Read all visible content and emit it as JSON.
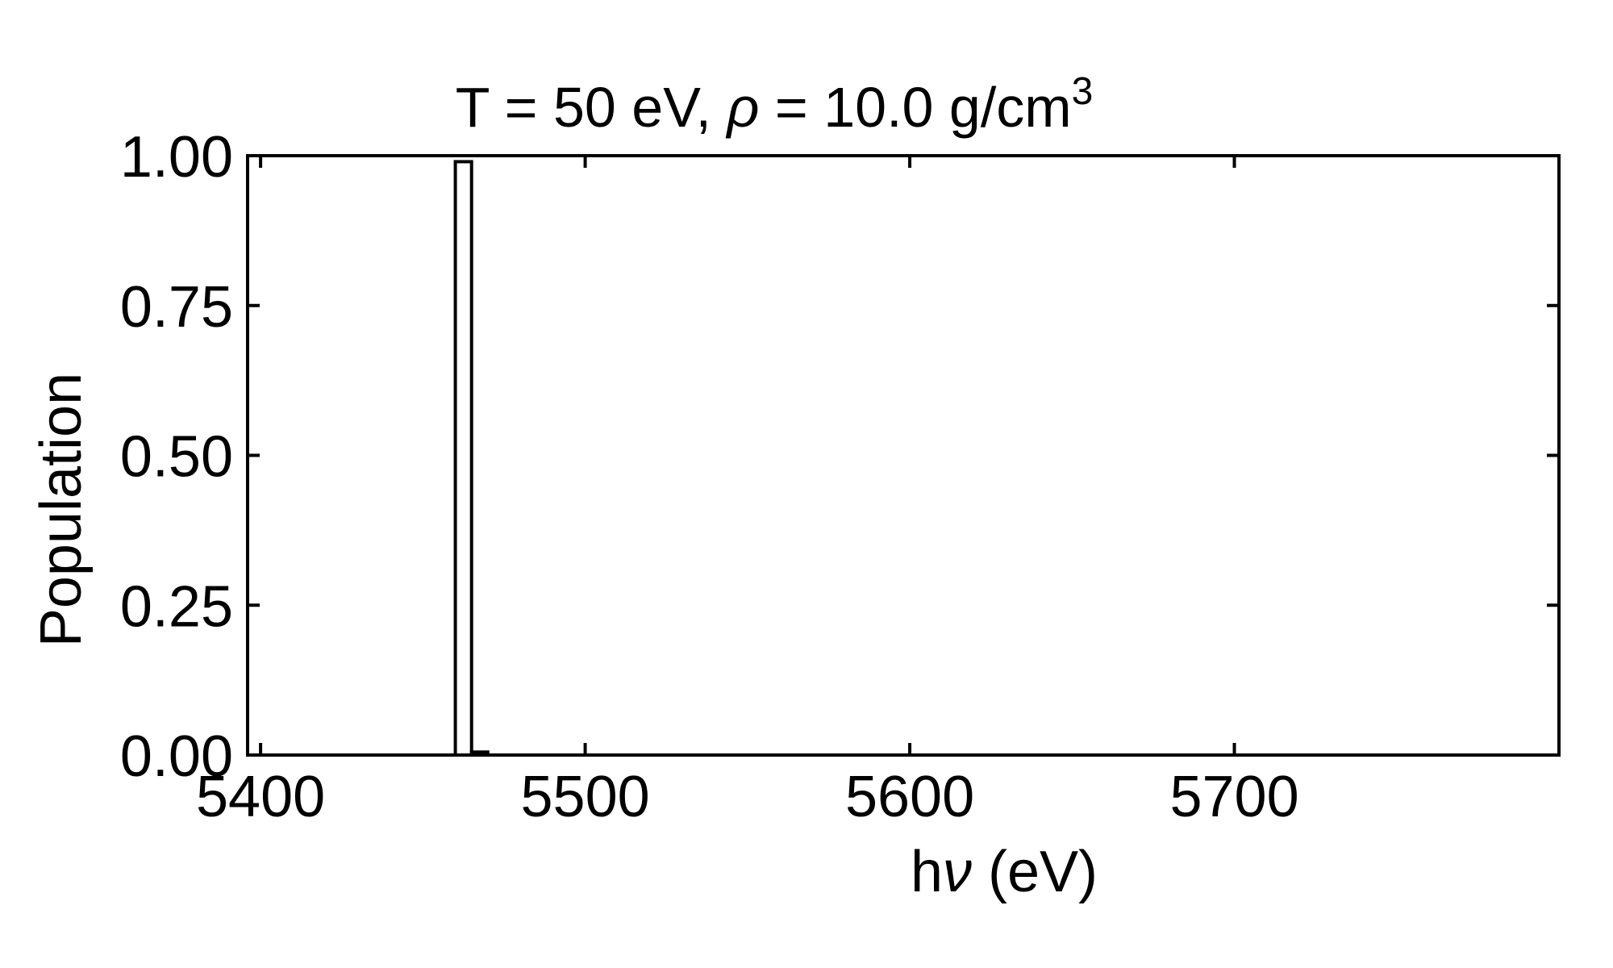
{
  "chart_data": {
    "type": "bar",
    "title": {
      "prefix": "T = 50 eV, ",
      "rho_symbol": "ρ",
      "suffix": " = 10.0 g/cm",
      "superscript": "3"
    },
    "xlabel": {
      "h": "h",
      "nu_symbol": "ν",
      "unit": " (eV)"
    },
    "ylabel": "Population",
    "xlim": [
      5396,
      5800
    ],
    "ylim": [
      0,
      1.0
    ],
    "xticks": [
      5400,
      5500,
      5600,
      5700
    ],
    "xtick_labels": [
      "5400",
      "5500",
      "5600",
      "5700"
    ],
    "yticks": [
      0,
      0.25,
      0.5,
      0.75,
      1.0
    ],
    "ytick_labels": [
      "0.00",
      "0.25",
      "0.50",
      "0.75",
      "1.00"
    ],
    "bin_width": 5,
    "bins": [
      {
        "x_left": 5460,
        "value": 0.99
      },
      {
        "x_left": 5465,
        "value": 0.005
      }
    ],
    "grid": false,
    "colors": {
      "bar_edge": "#000000",
      "bar_fill": "#ffffff",
      "axes": "#000000"
    }
  }
}
